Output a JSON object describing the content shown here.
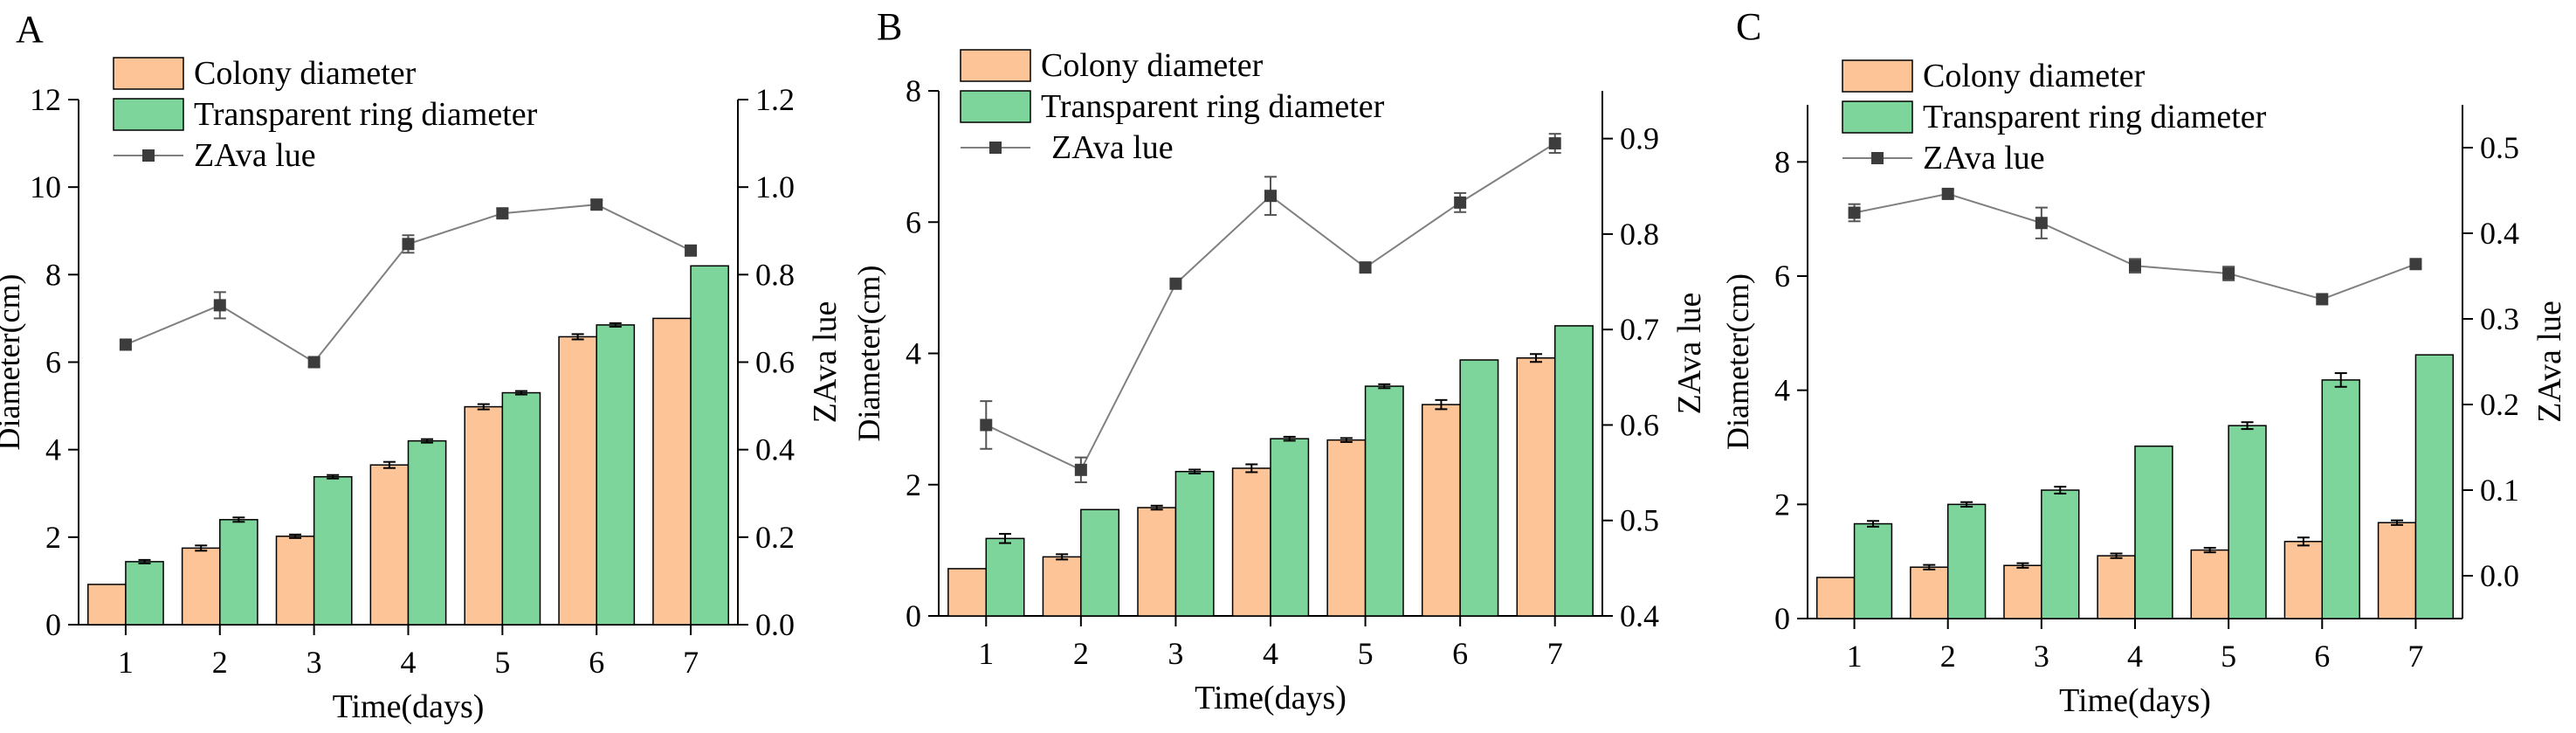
{
  "colors": {
    "colony": "#FDC497",
    "ring": "#7ED59B",
    "za_line": "#808080",
    "za_marker": "#3c3c3c",
    "axis": "#000000"
  },
  "chart_data": [
    {
      "type": "bar",
      "panel_label": "A",
      "categories": [
        "1",
        "2",
        "3",
        "4",
        "5",
        "6",
        "7"
      ],
      "xlabel": "Time(days)",
      "ylabel": "Diameter(cm)",
      "ylim": [
        0,
        12
      ],
      "yticks": [
        "0",
        "2",
        "4",
        "6",
        "8",
        "10",
        "12"
      ],
      "y2label": "ZAva lue",
      "y2lim": [
        0,
        1.2
      ],
      "y2ticks": [
        "0.0",
        "0.2",
        "0.4",
        "0.6",
        "0.8",
        "1.0",
        "1.2"
      ],
      "legend": [
        "Colony diameter",
        "Transparent ring diameter",
        "ZAva lue"
      ],
      "legend_position": "top-left",
      "series": [
        {
          "name": "Colony diameter",
          "kind": "bar",
          "values": [
            0.92,
            1.75,
            2.02,
            3.65,
            4.98,
            6.58,
            7.0
          ],
          "errors": [
            0,
            0.06,
            0.04,
            0.07,
            0.06,
            0.06,
            0
          ]
        },
        {
          "name": "Transparent ring diameter",
          "kind": "bar",
          "values": [
            1.44,
            2.4,
            3.38,
            4.2,
            5.3,
            6.85,
            8.2
          ],
          "errors": [
            0.04,
            0.05,
            0.04,
            0.04,
            0.04,
            0.04,
            0
          ]
        },
        {
          "name": "ZAva lue",
          "kind": "line",
          "axis": "right",
          "values": [
            0.64,
            0.73,
            0.6,
            0.87,
            0.94,
            0.96,
            0.855
          ],
          "errors": [
            0.01,
            0.03,
            0.01,
            0.02,
            0.01,
            0.01,
            0.01
          ]
        }
      ]
    },
    {
      "type": "bar",
      "panel_label": "B",
      "categories": [
        "1",
        "2",
        "3",
        "4",
        "5",
        "6",
        "7"
      ],
      "xlabel": "Time(days)",
      "ylabel": "Diameter(cm)",
      "ylim": [
        0,
        8
      ],
      "yticks": [
        "0",
        "2",
        "4",
        "6",
        "8"
      ],
      "y2label": "ZAva lue",
      "y2lim": [
        0.4,
        0.95
      ],
      "y2ticks": [
        "0.4",
        "0.5",
        "0.6",
        "0.7",
        "0.8",
        "0.9"
      ],
      "legend": [
        "Colony diameter",
        "Transparent ring diameter",
        "ZAva lue"
      ],
      "legend_position": "top-left",
      "series": [
        {
          "name": "Colony diameter",
          "kind": "bar",
          "values": [
            0.72,
            0.9,
            1.65,
            2.25,
            2.68,
            3.22,
            3.93
          ],
          "errors": [
            0,
            0.04,
            0.03,
            0.06,
            0.03,
            0.07,
            0.06
          ]
        },
        {
          "name": "Transparent ring diameter",
          "kind": "bar",
          "values": [
            1.18,
            1.62,
            2.2,
            2.7,
            3.5,
            3.9,
            4.42
          ],
          "errors": [
            0.07,
            0,
            0.03,
            0.03,
            0.03,
            0,
            0
          ]
        },
        {
          "name": "ZAva lue",
          "kind": "line",
          "axis": "right",
          "values": [
            0.6,
            0.553,
            0.748,
            0.84,
            0.765,
            0.833,
            0.895
          ],
          "errors": [
            0.025,
            0.013,
            0,
            0.02,
            0.005,
            0.01,
            0.01
          ]
        }
      ]
    },
    {
      "type": "bar",
      "panel_label": "C",
      "categories": [
        "1",
        "2",
        "3",
        "4",
        "5",
        "6",
        "7"
      ],
      "xlabel": "Time(days)",
      "ylabel": "Diameter(cm)",
      "ylim": [
        0,
        9
      ],
      "yticks": [
        "0",
        "2",
        "4",
        "6",
        "8"
      ],
      "y2label": "ZAva lue",
      "y2lim": [
        -0.05,
        0.55
      ],
      "y2ticks": [
        "0.0",
        "0.1",
        "0.2",
        "0.3",
        "0.4",
        "0.5"
      ],
      "legend": [
        "Colony diameter",
        "Transparent ring diameter",
        "ZAva lue"
      ],
      "legend_position": "top-left",
      "series": [
        {
          "name": "Colony diameter",
          "kind": "bar",
          "values": [
            0.72,
            0.9,
            0.93,
            1.1,
            1.2,
            1.35,
            1.68
          ],
          "errors": [
            0,
            0.04,
            0.04,
            0.04,
            0.04,
            0.07,
            0.04
          ]
        },
        {
          "name": "Transparent ring diameter",
          "kind": "bar",
          "values": [
            1.66,
            2.0,
            2.25,
            3.02,
            3.38,
            4.18,
            4.62
          ],
          "errors": [
            0.05,
            0.04,
            0.06,
            0,
            0.06,
            0.12,
            0
          ]
        },
        {
          "name": "ZAva lue",
          "kind": "line",
          "axis": "right",
          "values": [
            0.424,
            0.446,
            0.412,
            0.362,
            0.353,
            0.323,
            0.364
          ],
          "errors": [
            0.01,
            0.005,
            0.018,
            0.008,
            0.008,
            0,
            0.004
          ]
        }
      ]
    }
  ]
}
